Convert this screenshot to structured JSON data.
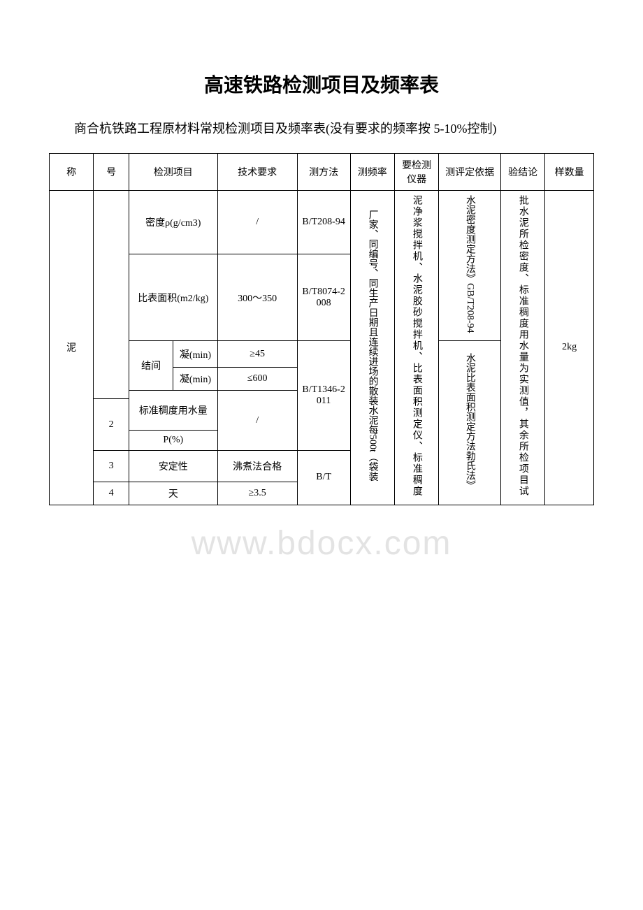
{
  "document": {
    "title": "高速铁路检测项目及频率表",
    "subtitle": "商合杭铁路工程原材料常规检测项目及频率表(没有要求的频率按 5-10%控制)",
    "watermark": "www.bdocx.com"
  },
  "table": {
    "header": {
      "name": "称",
      "seq": "号",
      "item": "检测项目",
      "tech": "技术要求",
      "method": "测方法",
      "freq": "测频率",
      "instr": "要检测仪器",
      "basis": "测评定依据",
      "concl": "验结论",
      "sample": "样数量"
    },
    "body": {
      "material_name": "泥",
      "seq_blank": "",
      "density_item": "密度ρ(g/cm3)",
      "density_tech": "/",
      "density_method": "B/T208-94",
      "specific_area_item": "比表面积(m2/kg)",
      "specific_area_tech": "300～350",
      "specific_area_method": "B/T8074-2008",
      "setting_group": "结间",
      "initial_set_label": "凝(min)",
      "initial_set_tech": "≥45",
      "final_set_label": "凝(min)",
      "final_set_tech": "≤600",
      "consistency_item": "标准稠度用水量",
      "consistency_p": "P(%)",
      "consistency_tech": "/",
      "stability_item": "安定性",
      "stability_tech": "沸煮法合格",
      "seq2": "2",
      "seq3": "3",
      "seq4": "4",
      "day_label": "天",
      "day_tech": "≥3.5",
      "method_1346": "B/T1346-2011",
      "method_bt": "B/T",
      "freq_text": "厂家、同编号、同生产日期且连续进场的散装水泥每500t（袋装",
      "instr_text": "泥净浆搅拌机、水泥胶砂搅拌机、比表面积测定仪、标准稠度",
      "basis_text1": "水泥密度测定方法》GB/T208-94",
      "basis_text2": "水泥比表面积测定方法勃氏法》",
      "concl_text": "批水泥所检密度、标准稠度用水量为实测值，其余所检项目试",
      "sample_text": "2kg"
    }
  },
  "style": {
    "background_color": "#ffffff",
    "text_color": "#000000",
    "border_color": "#000000",
    "title_fontsize": 28,
    "subtitle_fontsize": 18,
    "table_fontsize": 14,
    "watermark_color": "rgba(200,200,200,0.5)"
  }
}
